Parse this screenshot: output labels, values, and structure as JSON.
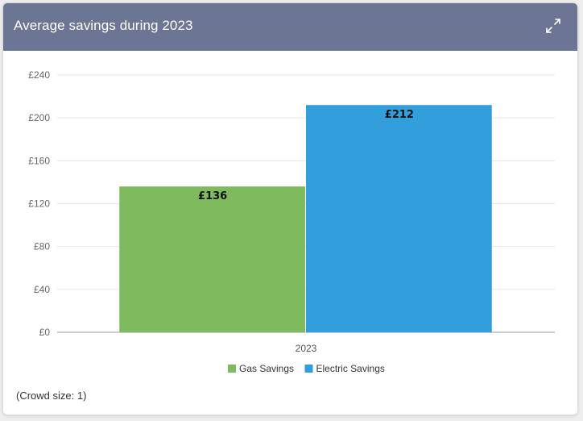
{
  "card": {
    "title": "Average savings during 2023",
    "expand_icon": "expand-icon",
    "crowd_size_text": "(Crowd size: 1)"
  },
  "colors": {
    "header_bg": "#6d7595",
    "gas": "#7fba5f",
    "electric": "#329edc"
  },
  "chart_data": {
    "type": "bar",
    "categories": [
      "2023"
    ],
    "series": [
      {
        "name": "Gas Savings",
        "values": [
          136
        ],
        "color": "#7fba5f",
        "label": "£136"
      },
      {
        "name": "Electric Savings",
        "values": [
          212
        ],
        "color": "#329edc",
        "label": "£212"
      }
    ],
    "yticks": [
      "£0",
      "£40",
      "£80",
      "£120",
      "£160",
      "£200",
      "£240"
    ],
    "ylim": [
      0,
      240
    ],
    "ytick_step": 40,
    "grid": true,
    "legend_position": "bottom-center"
  }
}
